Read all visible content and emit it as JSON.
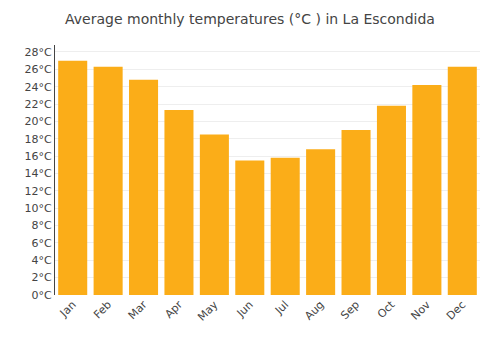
{
  "chart_data": {
    "type": "bar",
    "title": "Average monthly temperatures (°C ) in La Escondida",
    "categories": [
      "Jan",
      "Feb",
      "Mar",
      "Apr",
      "May",
      "Jun",
      "Jul",
      "Aug",
      "Sep",
      "Oct",
      "Nov",
      "Dec"
    ],
    "values": [
      27.0,
      26.3,
      24.8,
      21.3,
      18.5,
      15.5,
      15.8,
      16.8,
      19.0,
      21.8,
      24.2,
      26.3
    ],
    "color": "#FBAD18",
    "ylim": [
      0,
      28.8
    ],
    "yticks": [
      {
        "value": 0,
        "label": "0°C"
      },
      {
        "value": 2,
        "label": "2°C"
      },
      {
        "value": 4,
        "label": "4°C"
      },
      {
        "value": 6,
        "label": "6°C"
      },
      {
        "value": 8,
        "label": "8°C"
      },
      {
        "value": 10,
        "label": "10°C"
      },
      {
        "value": 12,
        "label": "12°C"
      },
      {
        "value": 14,
        "label": "14°C"
      },
      {
        "value": 16,
        "label": "16°C"
      },
      {
        "value": 18,
        "label": "18°C"
      },
      {
        "value": 20,
        "label": "20°C"
      },
      {
        "value": 22,
        "label": "22°C"
      },
      {
        "value": 24,
        "label": "24°C"
      },
      {
        "value": 26,
        "label": "26°C"
      },
      {
        "value": 28,
        "label": "28°C"
      }
    ],
    "grid": true
  }
}
